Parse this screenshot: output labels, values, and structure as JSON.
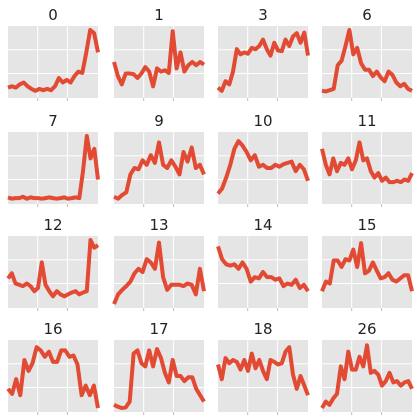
{
  "colors": {
    "line": "#e24a33",
    "panel_bg": "#e5e5e5",
    "grid": "#ffffff",
    "tick": "#bbbbbb"
  },
  "chart_data": [
    {
      "type": "line",
      "title": "0",
      "values": [
        0.1,
        0.12,
        0.1,
        0.15,
        0.18,
        0.12,
        0.08,
        0.05,
        0.08,
        0.06,
        0.08,
        0.06,
        0.12,
        0.25,
        0.18,
        0.22,
        0.18,
        0.28,
        0.35,
        0.33,
        0.65,
        1.0,
        0.95,
        0.65
      ]
    },
    {
      "type": "line",
      "title": "1",
      "values": [
        0.5,
        0.28,
        0.15,
        0.32,
        0.32,
        0.31,
        0.25,
        0.32,
        0.42,
        0.35,
        0.12,
        0.4,
        0.35,
        0.37,
        0.33,
        0.98,
        0.4,
        0.65,
        0.35,
        0.45,
        0.5,
        0.45,
        0.5,
        0.46
      ]
    },
    {
      "type": "line",
      "title": "3",
      "values": [
        0.1,
        0.05,
        0.2,
        0.15,
        0.35,
        0.7,
        0.62,
        0.65,
        0.63,
        0.72,
        0.7,
        0.75,
        0.85,
        0.7,
        0.6,
        0.8,
        0.68,
        0.67,
        0.85,
        0.75,
        0.9,
        0.95,
        0.8,
        0.96,
        0.6
      ]
    },
    {
      "type": "line",
      "title": "6",
      "values": [
        0.05,
        0.04,
        0.06,
        0.08,
        0.45,
        0.52,
        0.75,
        1.0,
        0.62,
        0.72,
        0.48,
        0.38,
        0.38,
        0.28,
        0.35,
        0.26,
        0.2,
        0.35,
        0.3,
        0.18,
        0.12,
        0.16,
        0.08,
        0.05
      ]
    },
    {
      "type": "line",
      "title": "7",
      "values": [
        0.04,
        0.02,
        0.03,
        0.03,
        0.05,
        0.02,
        0.04,
        0.03,
        0.03,
        0.02,
        0.03,
        0.04,
        0.03,
        0.02,
        0.03,
        0.04,
        0.02,
        0.03,
        0.04,
        0.03,
        0.45,
        1.0,
        0.65,
        0.8,
        0.32
      ]
    },
    {
      "type": "line",
      "title": "9",
      "values": [
        0.05,
        0.02,
        0.08,
        0.12,
        0.4,
        0.5,
        0.48,
        0.62,
        0.55,
        0.7,
        0.58,
        0.9,
        0.55,
        0.5,
        0.62,
        0.52,
        0.4,
        0.75,
        0.6,
        0.82,
        0.5,
        0.55,
        0.4
      ]
    },
    {
      "type": "line",
      "title": "10",
      "values": [
        0.1,
        0.18,
        0.35,
        0.55,
        0.8,
        0.92,
        0.85,
        0.75,
        0.62,
        0.7,
        0.52,
        0.55,
        0.5,
        0.5,
        0.55,
        0.52,
        0.56,
        0.58,
        0.6,
        0.45,
        0.55,
        0.48,
        0.3
      ]
    },
    {
      "type": "line",
      "title": "11",
      "values": [
        0.8,
        0.55,
        0.4,
        0.65,
        0.45,
        0.58,
        0.55,
        0.65,
        0.48,
        0.62,
        0.9,
        0.62,
        0.65,
        0.45,
        0.35,
        0.42,
        0.3,
        0.35,
        0.28,
        0.28,
        0.3,
        0.28,
        0.32,
        0.3,
        0.42
      ]
    },
    {
      "type": "line",
      "title": "12",
      "values": [
        0.4,
        0.48,
        0.32,
        0.3,
        0.28,
        0.32,
        0.28,
        0.2,
        0.25,
        0.65,
        0.3,
        0.2,
        0.12,
        0.2,
        0.15,
        0.12,
        0.15,
        0.18,
        0.2,
        0.15,
        0.18,
        0.2,
        1.0,
        0.88,
        0.92
      ]
    },
    {
      "type": "line",
      "title": "13",
      "values": [
        0.0,
        0.15,
        0.22,
        0.28,
        0.35,
        0.48,
        0.55,
        0.5,
        0.7,
        0.65,
        0.55,
        0.96,
        0.42,
        0.22,
        0.3,
        0.3,
        0.3,
        0.28,
        0.32,
        0.3,
        0.15,
        0.55,
        0.2
      ]
    },
    {
      "type": "line",
      "title": "14",
      "values": [
        0.9,
        0.7,
        0.62,
        0.6,
        0.62,
        0.55,
        0.65,
        0.55,
        0.35,
        0.42,
        0.4,
        0.5,
        0.42,
        0.42,
        0.38,
        0.4,
        0.28,
        0.32,
        0.3,
        0.38,
        0.25,
        0.3,
        0.2
      ]
    },
    {
      "type": "line",
      "title": "15",
      "values": [
        0.2,
        0.35,
        0.32,
        0.68,
        0.68,
        0.58,
        0.7,
        0.68,
        0.85,
        0.58,
        0.95,
        0.48,
        0.52,
        0.65,
        0.52,
        0.4,
        0.42,
        0.48,
        0.38,
        0.35,
        0.4,
        0.45,
        0.45,
        0.2
      ]
    },
    {
      "type": "line",
      "title": "16",
      "values": [
        0.3,
        0.22,
        0.45,
        0.2,
        0.75,
        0.58,
        0.7,
        0.95,
        0.9,
        0.8,
        0.88,
        0.72,
        0.72,
        0.9,
        0.9,
        0.8,
        0.82,
        0.68,
        0.2,
        0.35,
        0.2,
        0.35,
        0.0
      ]
    },
    {
      "type": "line",
      "title": "17",
      "values": [
        0.05,
        0.02,
        0.0,
        0.01,
        0.1,
        0.85,
        0.9,
        0.7,
        0.65,
        0.9,
        0.65,
        0.92,
        0.78,
        0.55,
        0.4,
        0.75,
        0.5,
        0.5,
        0.42,
        0.48,
        0.48,
        0.3,
        0.2,
        0.1
      ]
    },
    {
      "type": "line",
      "title": "18",
      "values": [
        0.68,
        0.45,
        0.78,
        0.7,
        0.75,
        0.72,
        0.6,
        0.75,
        0.58,
        0.85,
        0.62,
        0.75,
        0.58,
        0.45,
        0.75,
        0.72,
        0.68,
        0.7,
        0.88,
        0.95,
        0.52,
        0.3,
        0.5,
        0.35,
        0.2
      ]
    },
    {
      "type": "line",
      "title": "26",
      "values": [
        0.0,
        0.1,
        0.05,
        0.15,
        0.22,
        0.65,
        0.45,
        0.88,
        0.6,
        0.6,
        0.8,
        0.65,
        0.98,
        0.55,
        0.58,
        0.52,
        0.35,
        0.42,
        0.55,
        0.4,
        0.42,
        0.35,
        0.4,
        0.42,
        0.3
      ]
    }
  ]
}
